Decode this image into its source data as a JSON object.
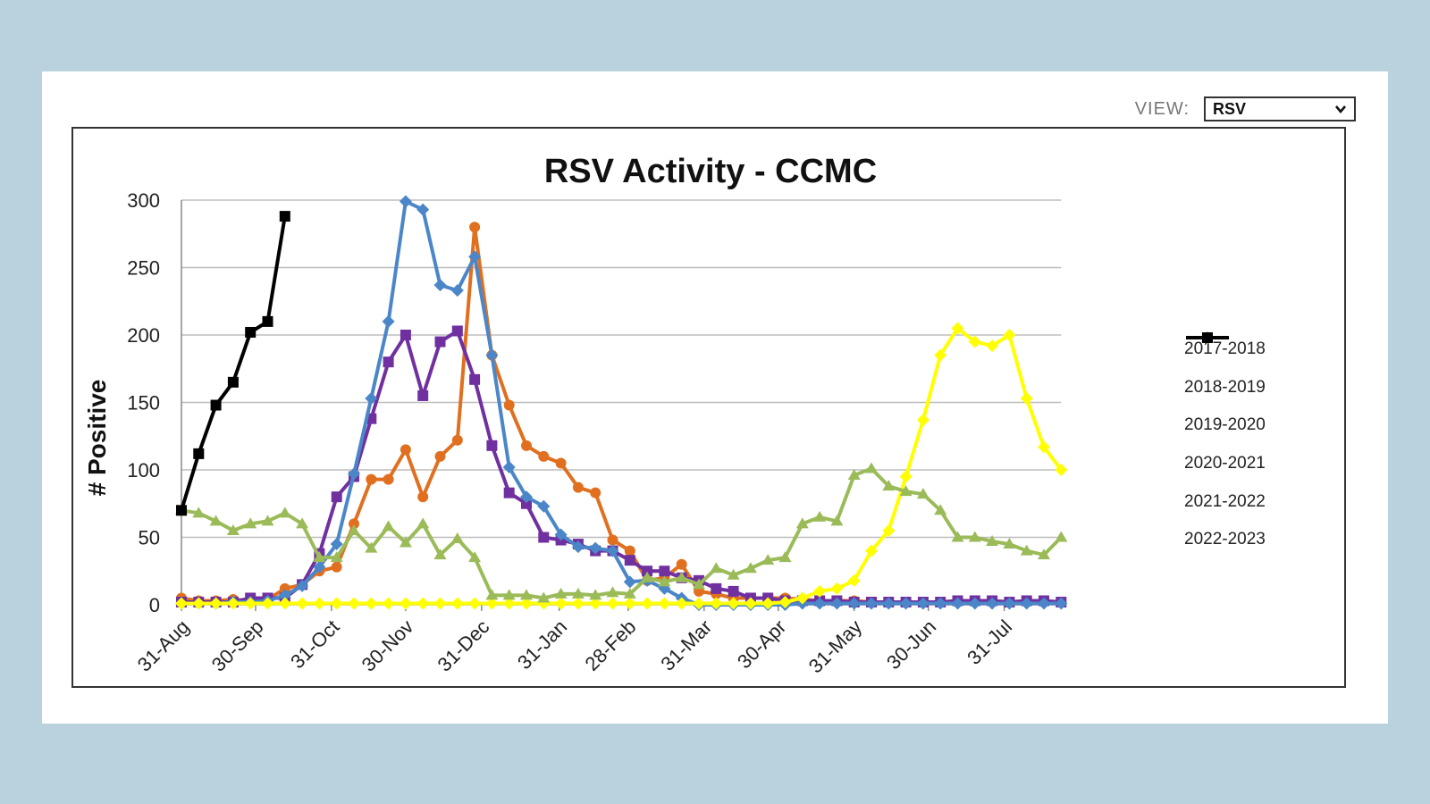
{
  "view": {
    "label": "VIEW:",
    "selected": "RSV"
  },
  "chart_data": {
    "type": "line",
    "title": "RSV Activity - CCMC",
    "xlabel": "",
    "ylabel": "# Positive",
    "ylim": [
      0,
      300
    ],
    "yticks": [
      0,
      50,
      100,
      150,
      200,
      250,
      300
    ],
    "grid": true,
    "legend_position": "right",
    "x_start_label": "31-Aug",
    "x_week_count": 52,
    "x_tick_labels": [
      "31-Aug",
      "30-Sep",
      "31-Oct",
      "30-Nov",
      "31-Dec",
      "31-Jan",
      "28-Feb",
      "31-Mar",
      "30-Apr",
      "31-May",
      "30-Jun",
      "31-Jul"
    ],
    "x_tick_weeks": [
      0,
      4.3,
      8.7,
      13,
      17.4,
      21.9,
      25.9,
      30.3,
      34.6,
      39,
      43.3,
      47.7
    ],
    "series": [
      {
        "name": "2017-2018",
        "color": "#e07020",
        "marker": "circle",
        "values": [
          5,
          3,
          3,
          4,
          3,
          4,
          12,
          15,
          25,
          28,
          60,
          93,
          93,
          115,
          80,
          110,
          122,
          280,
          185,
          148,
          118,
          110,
          105,
          87,
          83,
          48,
          40,
          18,
          20,
          30,
          10,
          8,
          5,
          5,
          5,
          5,
          4,
          3,
          3,
          3,
          2,
          2,
          2,
          2,
          2,
          3,
          3,
          3,
          2,
          3,
          2,
          2
        ]
      },
      {
        "name": "2018-2019",
        "color": "#7030a0",
        "marker": "square",
        "values": [
          2,
          2,
          2,
          2,
          5,
          5,
          5,
          15,
          38,
          80,
          95,
          138,
          180,
          200,
          155,
          195,
          203,
          167,
          118,
          83,
          75,
          50,
          48,
          45,
          40,
          40,
          33,
          25,
          25,
          20,
          18,
          12,
          10,
          5,
          5,
          3,
          3,
          3,
          3,
          2,
          2,
          2,
          2,
          2,
          2,
          3,
          3,
          3,
          2,
          3,
          3,
          2
        ]
      },
      {
        "name": "2019-2020",
        "color": "#4a86c8",
        "marker": "diamond",
        "values": [
          1,
          1,
          1,
          2,
          2,
          3,
          7,
          14,
          28,
          45,
          97,
          153,
          210,
          299,
          293,
          237,
          233,
          258,
          185,
          102,
          80,
          73,
          52,
          43,
          42,
          40,
          17,
          18,
          12,
          5,
          0,
          0,
          0,
          0,
          0,
          0,
          1,
          1,
          1,
          1,
          1,
          1,
          1,
          1,
          1,
          1,
          1,
          1,
          1,
          1,
          1,
          1
        ]
      },
      {
        "name": "2020-2021",
        "color": "#ffff00",
        "marker": "diamond",
        "values": [
          1,
          1,
          1,
          1,
          1,
          1,
          1,
          1,
          1,
          1,
          1,
          1,
          1,
          1,
          1,
          1,
          1,
          1,
          1,
          1,
          1,
          1,
          1,
          1,
          1,
          1,
          1,
          1,
          1,
          1,
          1,
          1,
          1,
          1,
          1,
          2,
          5,
          10,
          12,
          18,
          40,
          55,
          95,
          137,
          185,
          205,
          195,
          192,
          200,
          153,
          117,
          100
        ]
      },
      {
        "name": "2021-2022",
        "color": "#9bbb59",
        "marker": "triangle",
        "values": [
          70,
          68,
          62,
          55,
          60,
          62,
          68,
          60,
          35,
          35,
          55,
          42,
          58,
          46,
          60,
          37,
          49,
          35,
          7,
          7,
          7,
          5,
          8,
          8,
          7,
          9,
          8,
          20,
          17,
          20,
          15,
          27,
          22,
          27,
          33,
          35,
          60,
          65,
          62,
          96,
          101,
          88,
          84,
          82,
          70,
          50,
          50,
          47,
          45,
          40,
          37,
          50
        ]
      },
      {
        "name": "2022-2023",
        "color": "#000000",
        "marker": "square",
        "values": [
          70,
          112,
          148,
          165,
          202,
          210,
          288
        ]
      }
    ]
  }
}
